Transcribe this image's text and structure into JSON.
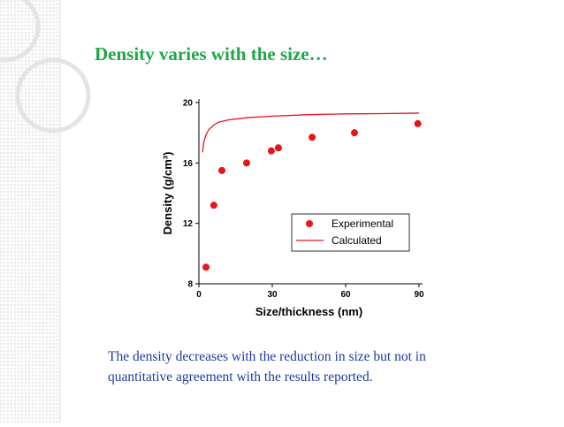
{
  "slide": {
    "title": "Density varies with the size…",
    "caption": [
      "The density decreases with the reduction in size but not in",
      "quantitative agreement with the results reported."
    ]
  },
  "chart_data": {
    "type": "scatter",
    "x_label": "Size/thickness (nm)",
    "y_label": "Density (g/cm³)",
    "xlim": [
      0,
      90
    ],
    "xticks": [
      0,
      30,
      60,
      90
    ],
    "ylim": [
      8,
      20
    ],
    "yticks": [
      8,
      12,
      16,
      20
    ],
    "legend": "center right",
    "series": [
      {
        "name": "Experimental",
        "type": "scatter",
        "color": "#e8141b",
        "x": [
          2.9,
          6.1,
          9.4,
          19.5,
          29.6,
          32.5,
          46.3,
          63.6,
          89.5
        ],
        "values": [
          9.1,
          13.2,
          15.5,
          16.0,
          16.8,
          17.0,
          17.7,
          18.0,
          18.6
        ]
      },
      {
        "name": "Calculated",
        "type": "line",
        "color": "#e8141b",
        "x": [
          1.5,
          2,
          3,
          4,
          6,
          8,
          12,
          20,
          30,
          45,
          60,
          75,
          90
        ],
        "values": [
          16.7,
          17.4,
          17.9,
          18.2,
          18.5,
          18.7,
          18.85,
          19.0,
          19.1,
          19.2,
          19.25,
          19.27,
          19.3
        ]
      }
    ]
  }
}
